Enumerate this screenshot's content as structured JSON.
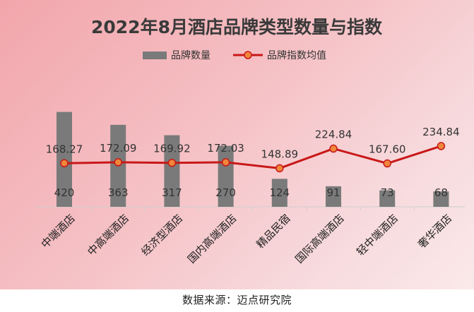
{
  "chart_data": {
    "type": "bar",
    "title": "2022年8月酒店品牌类型数量与指数",
    "categories": [
      "中端酒店",
      "中高端酒店",
      "经济型酒店",
      "国内高端酒店",
      "精品民宿",
      "国际高端酒店",
      "轻中端酒店",
      "奢华酒店"
    ],
    "series": [
      {
        "name": "品牌数量",
        "kind": "bar",
        "color": "#7a7a7a",
        "values": [
          420,
          363,
          317,
          270,
          124,
          91,
          73,
          68
        ],
        "labels": [
          "420",
          "363",
          "317",
          "270",
          "124",
          "91",
          "73",
          "68"
        ]
      },
      {
        "name": "品牌指数均值",
        "kind": "line",
        "color": "#c81818",
        "marker_color": "#f0863a",
        "values": [
          168.27,
          172.09,
          169.92,
          172.03,
          148.89,
          224.84,
          167.6,
          234.84
        ],
        "labels": [
          "168.27",
          "172.09",
          "169.92",
          "172.03",
          "148.89",
          "224.84",
          "167.60",
          "234.84"
        ]
      }
    ],
    "legend_position": "top-center",
    "grid": false,
    "bar_axis_range": [
      0,
      550
    ],
    "line_axis_range": [
      0,
      480
    ]
  },
  "source_text": "数据来源：迈点研究院"
}
